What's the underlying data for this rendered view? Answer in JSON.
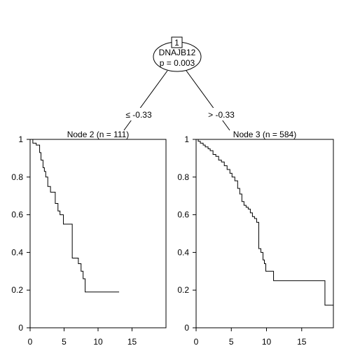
{
  "tree": {
    "root": {
      "id_label": "1",
      "variable": "DNAJB12",
      "p_label": "p = 0.003"
    },
    "edges": {
      "left_label": "≤ -0.33",
      "right_label": "> -0.33"
    }
  },
  "chart_data": [
    {
      "type": "line",
      "step": true,
      "title": "Node 2 (n = 111)",
      "xlim": [
        0,
        20
      ],
      "ylim": [
        0,
        1
      ],
      "x_ticks": [
        0,
        5,
        10,
        15
      ],
      "y_ticks": [
        0,
        0.2,
        0.4,
        0.6,
        0.8,
        1
      ],
      "x_tick_labels": [
        "0",
        "5",
        "10",
        "15"
      ],
      "y_tick_labels": [
        "0",
        "0.2",
        "0.4",
        "0.6",
        "0.8",
        "1"
      ],
      "series": [
        {
          "x": [
            0,
            0.4,
            0.9,
            1.4,
            1.6,
            1.9,
            2.1,
            2.3,
            2.6,
            3.0,
            3.7,
            4.1,
            4.4,
            4.9,
            5.4,
            6.2,
            7.1,
            7.5,
            7.8,
            8.1,
            13.1
          ],
          "y": [
            1.0,
            0.98,
            0.97,
            0.93,
            0.89,
            0.85,
            0.83,
            0.8,
            0.75,
            0.72,
            0.66,
            0.62,
            0.6,
            0.55,
            0.55,
            0.37,
            0.34,
            0.3,
            0.26,
            0.19,
            0.19
          ]
        }
      ]
    },
    {
      "type": "line",
      "step": true,
      "title": "Node 3 (n = 584)",
      "xlim": [
        0,
        19.5
      ],
      "ylim": [
        0,
        1
      ],
      "x_ticks": [
        0,
        5,
        10,
        15
      ],
      "y_ticks": [
        0,
        0.2,
        0.4,
        0.6,
        0.8,
        1
      ],
      "x_tick_labels": [
        "0",
        "5",
        "10",
        "15"
      ],
      "y_tick_labels": [
        "0",
        "0.2",
        "0.4",
        "0.6",
        "0.8",
        "1"
      ],
      "series": [
        {
          "x": [
            0,
            0.3,
            0.6,
            1.0,
            1.3,
            1.7,
            2.0,
            2.4,
            2.8,
            3.2,
            3.6,
            4.0,
            4.4,
            4.8,
            5.1,
            5.5,
            5.9,
            6.2,
            6.5,
            6.8,
            7.1,
            7.4,
            7.7,
            8.0,
            8.3,
            8.6,
            8.9,
            9.2,
            9.5,
            9.7,
            9.9,
            10.2,
            10.5,
            11.0,
            12.0,
            18.3,
            19.5
          ],
          "y": [
            1.0,
            0.99,
            0.98,
            0.97,
            0.96,
            0.95,
            0.94,
            0.92,
            0.91,
            0.89,
            0.88,
            0.86,
            0.84,
            0.82,
            0.8,
            0.78,
            0.74,
            0.71,
            0.67,
            0.65,
            0.64,
            0.63,
            0.61,
            0.59,
            0.58,
            0.56,
            0.42,
            0.4,
            0.36,
            0.34,
            0.3,
            0.3,
            0.3,
            0.25,
            0.25,
            0.12,
            0.12
          ]
        }
      ]
    }
  ]
}
